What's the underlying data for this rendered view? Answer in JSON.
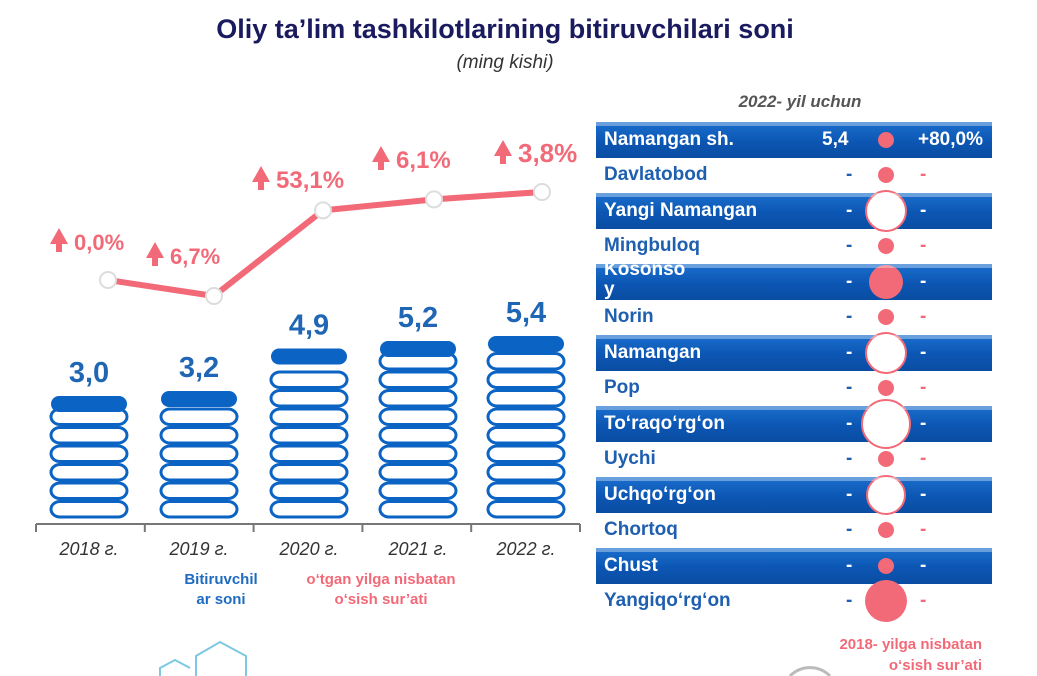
{
  "title": "Oliy ta’lim tashkilotlarining bitiruvchilari soni",
  "subtitle": "(ming kishi)",
  "colors": {
    "bar": "#0b63c4",
    "growth": "#f26a78",
    "title": "#1a1a5e"
  },
  "chart_data": [
    {
      "type": "bar",
      "title": "Oliy ta’lim tashkilotlarining bitiruvchilari soni",
      "subtitle": "(ming kishi)",
      "categories": [
        "2018 г.",
        "2019 г.",
        "2020 г.",
        "2021 г.",
        "2022 г."
      ],
      "value_labels": [
        "3,0",
        "3,2",
        "4,9",
        "5,2",
        "5,4"
      ],
      "growth_labels": [
        "0,0%",
        "6,7%",
        "53,1%",
        "6,1%",
        "3,8%"
      ],
      "series": [
        {
          "name": "Bitiruvchilar soni",
          "type": "bar",
          "values": [
            3.0,
            3.2,
            4.9,
            5.2,
            5.4
          ]
        },
        {
          "name": "o‘tgan yilga nisbatan o‘sish sur’ati",
          "type": "line",
          "values": [
            0.0,
            6.7,
            53.1,
            6.1,
            3.8
          ]
        }
      ],
      "legend": [
        "Bitiruvchilar soni",
        "o‘tgan yilga nisbatan o‘sish sur’ati"
      ],
      "legend_placement": "bottom"
    },
    {
      "type": "table",
      "title": "2022- yil uchun",
      "columns": [
        "district",
        "value",
        "growth_bubble",
        "growth_vs_2018"
      ],
      "rows": [
        {
          "name": "Namangan sh.",
          "value": "5,4",
          "pct": "+80,0%",
          "highlight": true,
          "bubble": "small"
        },
        {
          "name": "Davlatobod",
          "value": "-",
          "pct": "-",
          "highlight": false,
          "bubble": "small"
        },
        {
          "name": "Yangi Namangan",
          "value": "-",
          "pct": "-",
          "highlight": true,
          "bubble": "large-white"
        },
        {
          "name": "Mingbuloq",
          "value": "-",
          "pct": "-",
          "highlight": false,
          "bubble": "small"
        },
        {
          "name": "Kosonso\ny",
          "value": "-",
          "pct": "-",
          "highlight": true,
          "bubble": "medium"
        },
        {
          "name": "Norin",
          "value": "-",
          "pct": "-",
          "highlight": false,
          "bubble": "small"
        },
        {
          "name": "Namangan",
          "value": "-",
          "pct": "-",
          "highlight": true,
          "bubble": "large-white"
        },
        {
          "name": "Pop",
          "value": "-",
          "pct": "-",
          "highlight": false,
          "bubble": "small"
        },
        {
          "name": "To‘raqo‘rg‘on",
          "value": "-",
          "pct": "-",
          "highlight": true,
          "bubble": "xlarge-white"
        },
        {
          "name": "Uychi",
          "value": "-",
          "pct": "-",
          "highlight": false,
          "bubble": "small"
        },
        {
          "name": "Uchqo‘rg‘on",
          "value": "-",
          "pct": "-",
          "highlight": true,
          "bubble": "medium-white"
        },
        {
          "name": "Chortoq",
          "value": "-",
          "pct": "-",
          "highlight": false,
          "bubble": "small"
        },
        {
          "name": "Chust",
          "value": "-",
          "pct": "-",
          "highlight": true,
          "bubble": "small"
        },
        {
          "name": "Yangiqo‘rg‘on",
          "value": "-",
          "pct": "-",
          "highlight": false,
          "bubble": "large"
        }
      ]
    }
  ],
  "legend": {
    "bars": "Bitiruvchil\nar soni",
    "growth": "o‘tgan yilga nisbatan\no‘sish sur’ati"
  },
  "right_footer": "2018- yilga nisbatan\no‘sish sur’ati"
}
